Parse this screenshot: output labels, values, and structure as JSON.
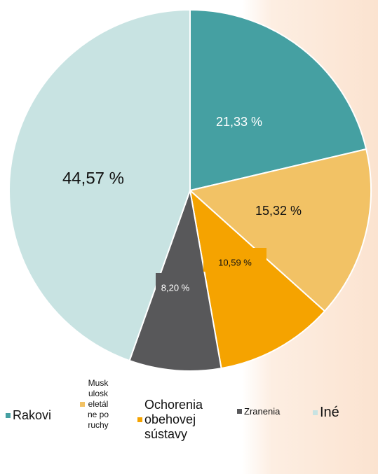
{
  "chart_data": {
    "type": "pie",
    "categories": [
      "Rakovi",
      "Muskuloskeletálne poruchy",
      "Ochorenia obehovej sústavy",
      "Zranenia",
      "Iné"
    ],
    "values": [
      21.33,
      15.32,
      10.59,
      8.2,
      44.57
    ],
    "value_labels": [
      "21,33 %",
      "15,32 %",
      "10,59 %",
      "8,20 %",
      "44,57 %"
    ],
    "colors": [
      "#45a0a2",
      "#f2c265",
      "#f5a300",
      "#58585a",
      "#c8e3e2"
    ],
    "legend": "bottom"
  }
}
